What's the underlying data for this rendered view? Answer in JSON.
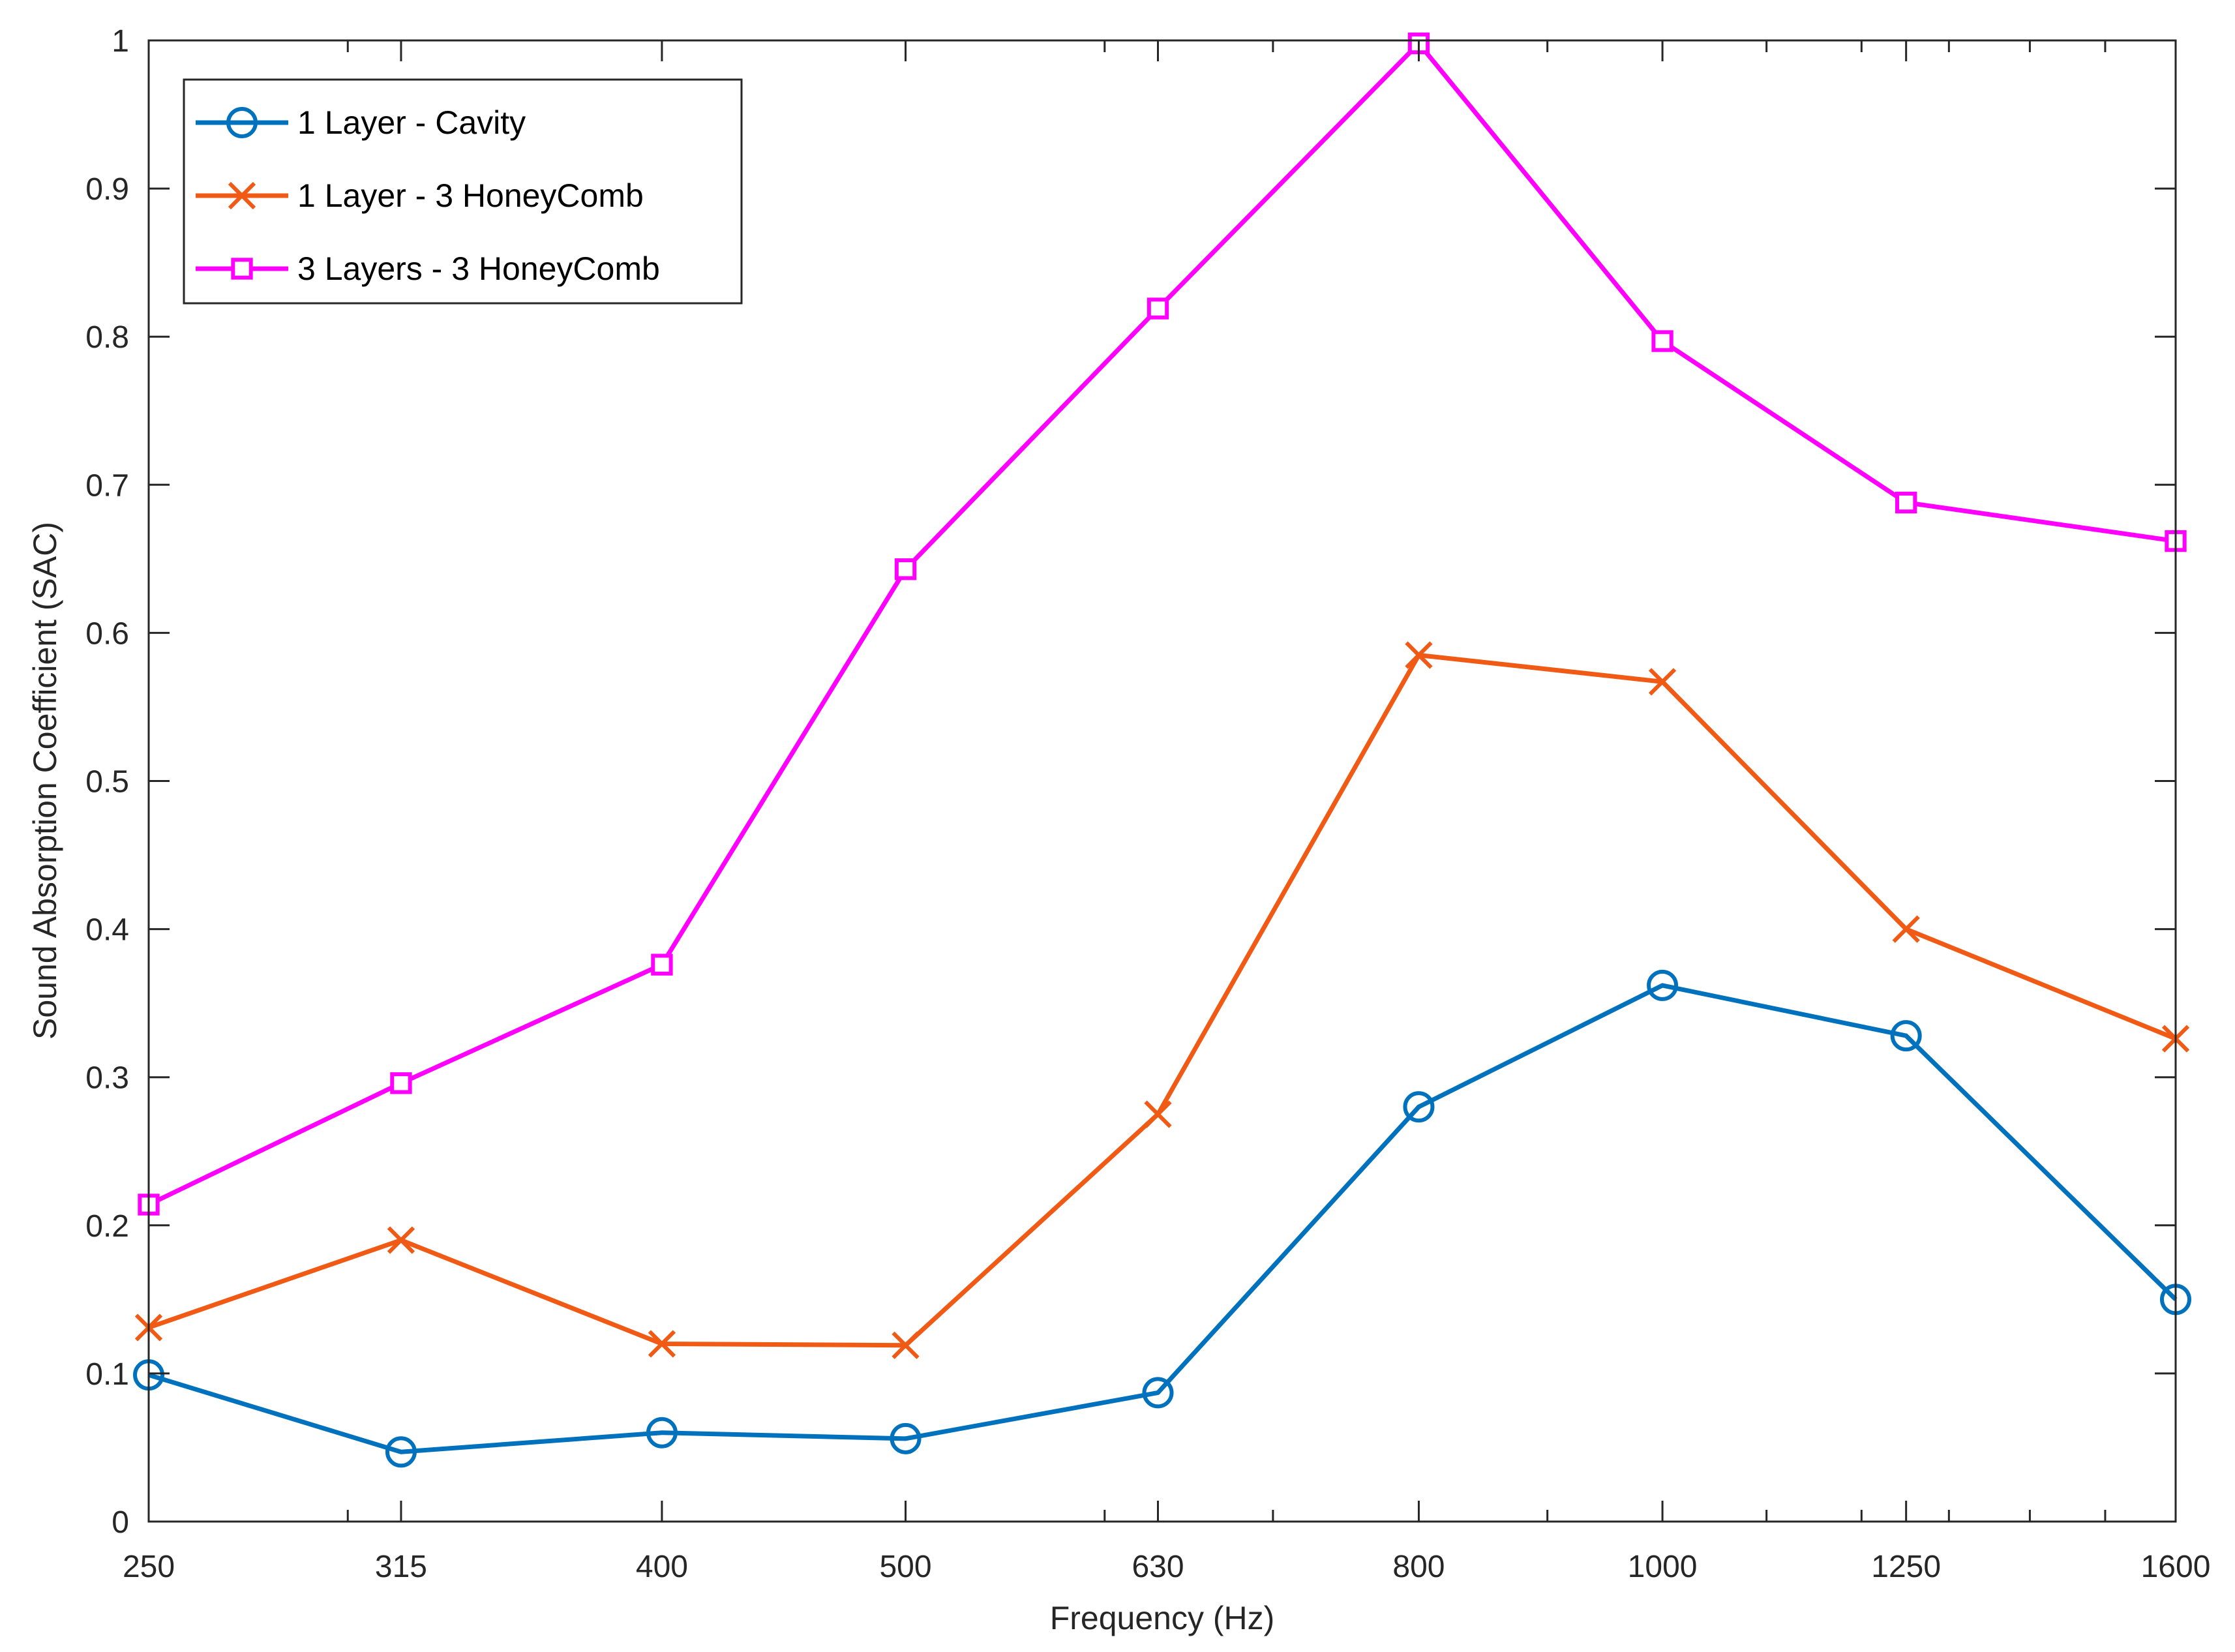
{
  "chart_data": {
    "type": "line",
    "title": "",
    "xlabel": "Frequency (Hz)",
    "ylabel": "Sound Absorption Coefficient (SAC)",
    "x_scale": "log",
    "x": [
      250,
      315,
      400,
      500,
      630,
      800,
      1000,
      1250,
      1600
    ],
    "xticks": [
      "250",
      "315",
      "400",
      "500",
      "630",
      "800",
      "1000",
      "1250",
      "1600"
    ],
    "xlim": [
      250,
      1600
    ],
    "ylim": [
      0,
      1
    ],
    "yticks": [
      "0",
      "0.1",
      "0.2",
      "0.3",
      "0.4",
      "0.5",
      "0.6",
      "0.7",
      "0.8",
      "0.9",
      "1"
    ],
    "grid": false,
    "legend_position": "top-left",
    "series": [
      {
        "name": "1 Layer - Cavity",
        "color": "#0072bd",
        "marker": "circle",
        "values": [
          0.099,
          0.047,
          0.06,
          0.056,
          0.087,
          0.28,
          0.362,
          0.328,
          0.15
        ]
      },
      {
        "name": "1 Layer - 3 HoneyComb",
        "color": "#f05a14",
        "marker": "x",
        "values": [
          0.131,
          0.19,
          0.12,
          0.119,
          0.275,
          0.585,
          0.567,
          0.4,
          0.326
        ]
      },
      {
        "name": "3 Layers - 3 HoneyComb",
        "color": "#ff00ff",
        "marker": "square",
        "values": [
          0.214,
          0.296,
          0.376,
          0.643,
          0.819,
          0.998,
          0.797,
          0.688,
          0.662
        ]
      }
    ]
  }
}
